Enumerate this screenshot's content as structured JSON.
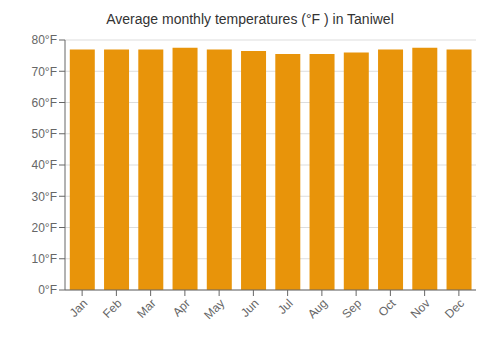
{
  "chart_data": {
    "type": "bar",
    "title": "Average monthly temperatures (°F ) in Taniwel",
    "categories": [
      "Jan",
      "Feb",
      "Mar",
      "Apr",
      "May",
      "Jun",
      "Jul",
      "Aug",
      "Sep",
      "Oct",
      "Nov",
      "Dec"
    ],
    "values": [
      77.0,
      77.0,
      77.0,
      77.5,
      77.0,
      76.5,
      75.5,
      75.5,
      76.0,
      77.0,
      77.5,
      77.0
    ],
    "color": "#E8940A",
    "ylim": [
      0,
      80
    ],
    "yticks": [
      {
        "value": 0,
        "label": "0°F"
      },
      {
        "value": 10,
        "label": "10°F"
      },
      {
        "value": 20,
        "label": "20°F"
      },
      {
        "value": 30,
        "label": "30°F"
      },
      {
        "value": 40,
        "label": "40°F"
      },
      {
        "value": 50,
        "label": "50°F"
      },
      {
        "value": 60,
        "label": "60°F"
      },
      {
        "value": 70,
        "label": "70°F"
      },
      {
        "value": 80,
        "label": "80°F"
      }
    ],
    "grid": true
  }
}
